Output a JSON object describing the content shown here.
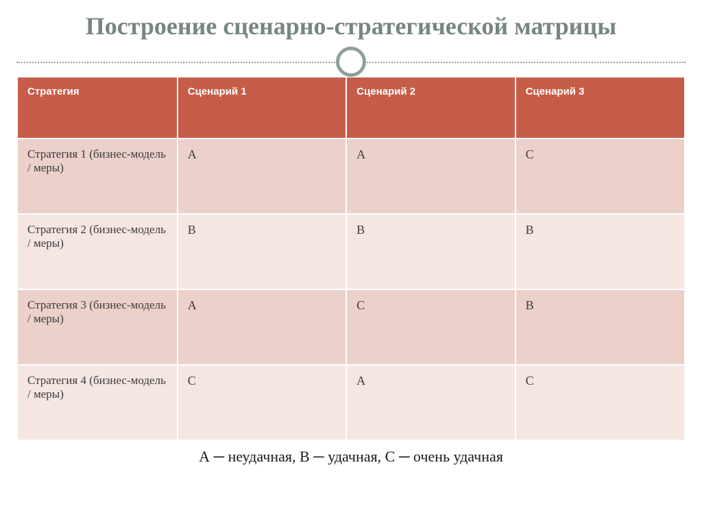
{
  "title": {
    "text": "Построение сценарно-стратегической матрицы",
    "fontsize": 36,
    "color": "#77877e"
  },
  "divider": {
    "dot_color": "#8ea198",
    "ring_border_color": "#8ea198",
    "ring_fill": "#ffffff"
  },
  "table": {
    "type": "table",
    "header_bg": "#c65d49",
    "header_text_color": "#ffffff",
    "header_fontsize": 15,
    "row_odd_bg": "#ecd0ca",
    "row_even_bg": "#f5e6e2",
    "cell_text_color": "#3b3b3b",
    "label_fontsize": 17,
    "value_fontsize": 18,
    "border_color": "#ffffff",
    "col_widths": [
      "24%",
      "25.3%",
      "25.3%",
      "25.4%"
    ],
    "columns": [
      "Стратегия",
      "Сценарий 1",
      "Сценарий 2",
      "Сценарий 3"
    ],
    "rows": [
      {
        "label": "Стратегия 1 (бизнес-модель / меры)",
        "cells": [
          "A",
          "A",
          "C"
        ]
      },
      {
        "label": "Стратегия 2 (бизнес-модель / меры)",
        "cells": [
          "B",
          "B",
          "B"
        ]
      },
      {
        "label": "Стратегия 3 (бизнес-модель / меры)",
        "cells": [
          "A",
          "C",
          "B"
        ]
      },
      {
        "label": "Стратегия 4 (бизнес-модель / меры)",
        "cells": [
          "C",
          "A",
          "C"
        ]
      }
    ]
  },
  "legend": {
    "text": "А ─ неудачная, В ─ удачная, С ─ очень удачная",
    "fontsize": 22,
    "color": "#1a1a1a"
  }
}
